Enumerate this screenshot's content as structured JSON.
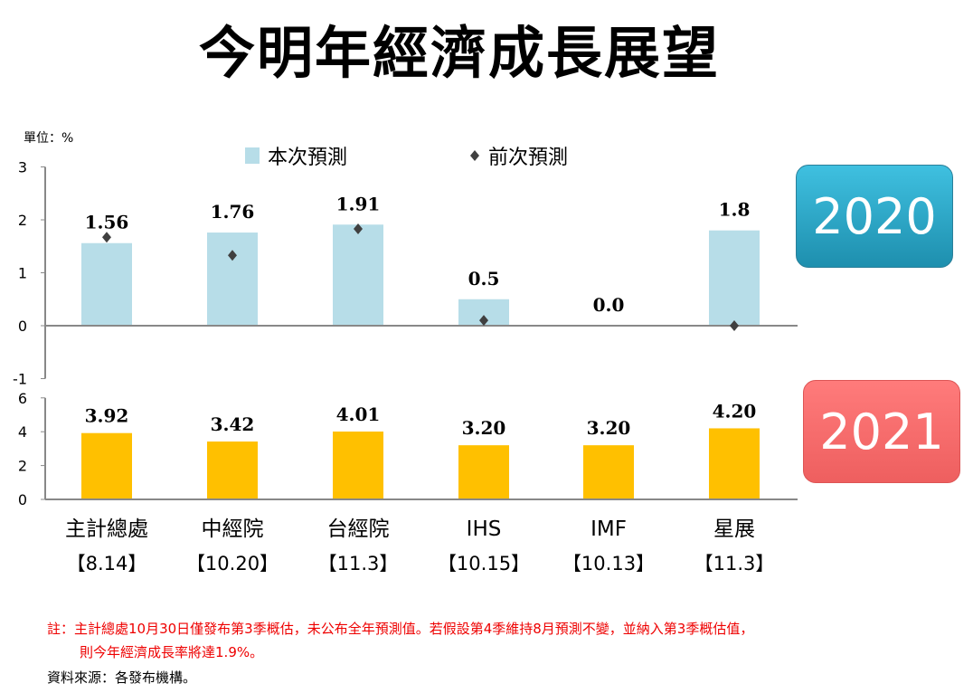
{
  "title": "今明年經濟成長展望",
  "unit": "單位：%",
  "badges": {
    "y2020": "2020",
    "y2021": "2021"
  },
  "notes": {
    "line1": "註：主計總處10月30日僅發布第3季概估，未公布全年預測值。若假設第4季維持8月預測不變，並納入第3季概估值，",
    "line2": "則今年經濟成長率將達1.9%。",
    "source": "資料來源：各發布機構。"
  },
  "colors": {
    "current2020": "#b7dde8",
    "current2021": "#ffc000",
    "previous": "#404040"
  },
  "chart_data": [
    {
      "type": "bar",
      "title": "2020",
      "categories": [
        "主計總處",
        "中經院",
        "台經院",
        "IHS",
        "IMF",
        "星展"
      ],
      "category_dates": [
        "【8.14】",
        "【10.20】",
        "【11.3】",
        "【10.15】",
        "【10.13】",
        "【11.3】"
      ],
      "legend": [
        "本次預測",
        "前次預測"
      ],
      "legend_placement": "top",
      "series": [
        {
          "name": "本次預測",
          "values": [
            1.56,
            1.76,
            1.91,
            0.5,
            0.0,
            1.8
          ],
          "labels": [
            "1.56",
            "1.76",
            "1.91",
            "0.5",
            "0.0",
            "1.8"
          ]
        },
        {
          "name": "前次預測",
          "type": "scatter",
          "values": [
            1.67,
            1.33,
            1.83,
            0.1,
            null,
            0.0
          ]
        }
      ],
      "ylim": [
        -1,
        3
      ],
      "yticks": [
        "-1",
        "0",
        "1",
        "2",
        "3"
      ]
    },
    {
      "type": "bar",
      "title": "2021",
      "categories": [
        "主計總處",
        "中經院",
        "台經院",
        "IHS",
        "IMF",
        "星展"
      ],
      "series": [
        {
          "name": "本次預測",
          "values": [
            3.92,
            3.42,
            4.01,
            3.2,
            3.2,
            4.2
          ],
          "labels": [
            "3.92",
            "3.42",
            "4.01",
            "3.20",
            "3.20",
            "4.20"
          ]
        }
      ],
      "ylim": [
        0,
        6
      ],
      "yticks": [
        "0",
        "2",
        "4",
        "6"
      ]
    }
  ]
}
